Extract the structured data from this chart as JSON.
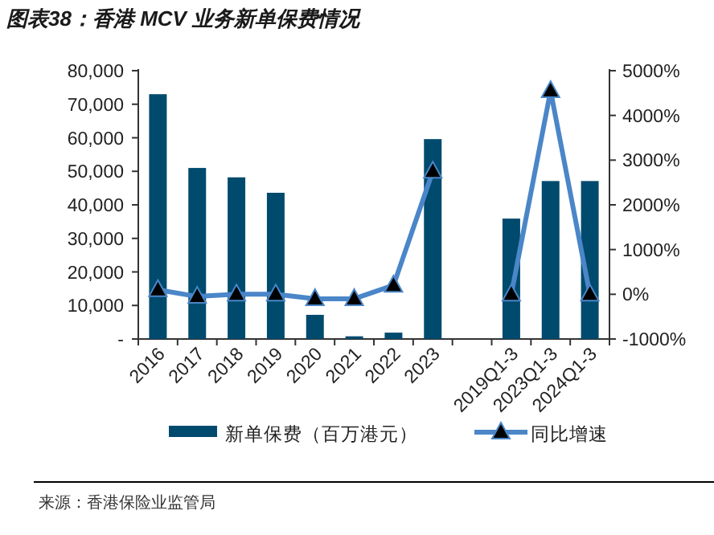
{
  "chart_data": {
    "type": "bar",
    "title": "图表38：香港 MCV 业务新单保费情况",
    "categories": [
      "2016",
      "2017",
      "2018",
      "2019",
      "2020",
      "2021",
      "2022",
      "2023",
      null,
      "2019Q1-3",
      "2023Q1-3",
      "2024Q1-3"
    ],
    "series": [
      {
        "name": "新单保费（百万港元）",
        "color": "#004a6e",
        "values": [
          73000,
          51000,
          48200,
          43600,
          7200,
          800,
          1900,
          59600,
          null,
          35900,
          47100,
          47100
        ]
      },
      {
        "name": "同比增速",
        "type": "line",
        "axis": "y2",
        "color": "#4a86c8",
        "marker": "triangle",
        "values": [
          100,
          -50,
          0,
          0,
          -100,
          -100,
          200,
          2750,
          null,
          0,
          4550,
          0
        ]
      }
    ],
    "ylim": [
      0,
      80000
    ],
    "yticks": [
      {
        "value": 0,
        "label": "-"
      },
      {
        "value": 10000,
        "label": "10,000"
      },
      {
        "value": 20000,
        "label": "20,000"
      },
      {
        "value": 30000,
        "label": "30,000"
      },
      {
        "value": 40000,
        "label": "40,000"
      },
      {
        "value": 50000,
        "label": "50,000"
      },
      {
        "value": 60000,
        "label": "60,000"
      },
      {
        "value": 70000,
        "label": "70,000"
      },
      {
        "value": 80000,
        "label": "80,000"
      }
    ],
    "y2lim": [
      -1000,
      5000
    ],
    "y2ticks": [
      {
        "value": -1000,
        "label": "-1000%"
      },
      {
        "value": 0,
        "label": "0%"
      },
      {
        "value": 1000,
        "label": "1000%"
      },
      {
        "value": 2000,
        "label": "2000%"
      },
      {
        "value": 3000,
        "label": "3000%"
      },
      {
        "value": 4000,
        "label": "4000%"
      },
      {
        "value": 5000,
        "label": "5000%"
      }
    ],
    "legend": "bottom",
    "annotations": [
      "来源：香港保险业监管局"
    ]
  }
}
